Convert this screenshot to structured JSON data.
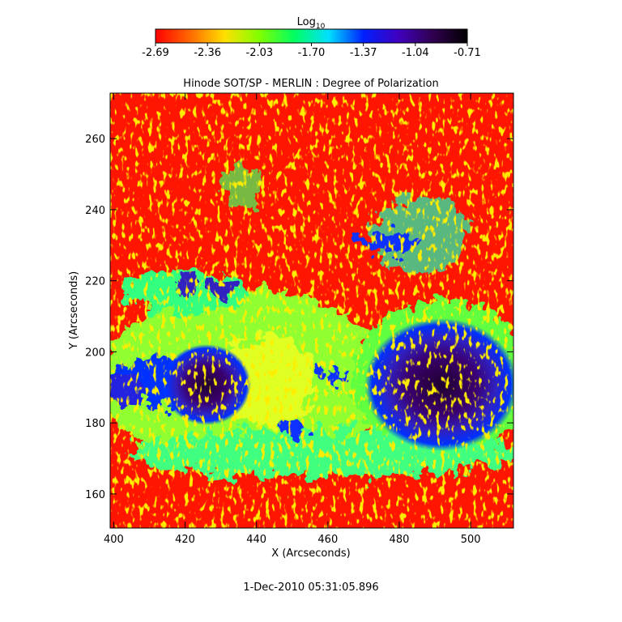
{
  "chart_data": {
    "type": "heatmap",
    "title": "Hinode SOT/SP - MERLIN : Degree of Polarization",
    "colorbar_label": "Log",
    "colorbar_label_subscript": "10",
    "colorbar_lim": [
      -2.69,
      -0.71
    ],
    "colorbar_ticks": [
      -2.69,
      -2.36,
      -2.03,
      {
        "value": -1.7,
        "label": "-1.70"
      },
      -1.37,
      -1.04,
      -0.71
    ],
    "colormap": [
      "#ff0000",
      "#ff6a00",
      "#ffe000",
      "#80ff00",
      "#00ff60",
      "#00e0ff",
      "#0020ff",
      "#4000c0",
      "#300050",
      "#000000"
    ],
    "xlabel": "X (Arcseconds)",
    "ylabel": "Y (Arcseconds)",
    "xlim": [
      399,
      512
    ],
    "ylim": [
      150.4,
      272.8
    ],
    "xticks": [
      400,
      420,
      440,
      460,
      480,
      500
    ],
    "yticks": [
      160,
      180,
      200,
      220,
      240,
      260
    ],
    "footer": "1-Dec-2010 05:31:05.896"
  }
}
